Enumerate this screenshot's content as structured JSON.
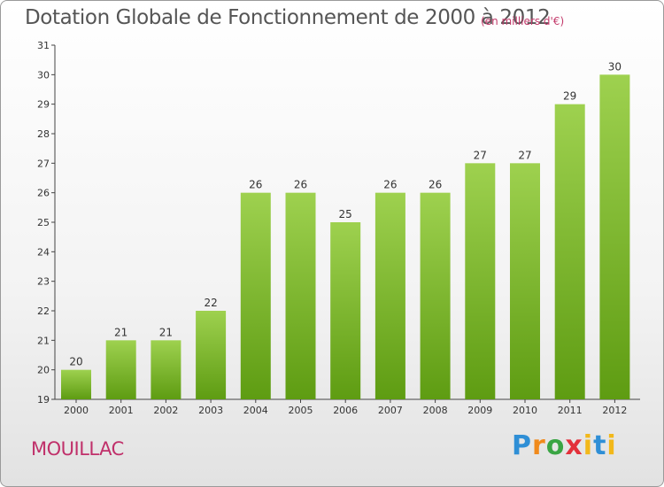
{
  "title": "Dotation Globale de Fonctionnement de 2000 à 2012",
  "subtitle": "(en milliers d'€)",
  "commune": "MOUILLAC",
  "logo": {
    "letters": [
      "P",
      "r",
      "o",
      "x",
      "i",
      "t",
      "i"
    ]
  },
  "colors": {
    "bar_top": "#9ed14f",
    "bar_bottom": "#5e9c12",
    "title": "#555555",
    "commune": "#c0306a"
  },
  "chart_data": {
    "type": "bar",
    "categories": [
      "2000",
      "2001",
      "2002",
      "2003",
      "2004",
      "2005",
      "2006",
      "2007",
      "2008",
      "2009",
      "2010",
      "2011",
      "2012"
    ],
    "values": [
      20,
      21,
      21,
      22,
      26,
      26,
      25,
      26,
      26,
      27,
      27,
      29,
      30
    ],
    "data_labels": [
      "20",
      "21",
      "21",
      "22",
      "26",
      "26",
      "25",
      "26",
      "26",
      "27",
      "27",
      "29",
      "30"
    ],
    "ylim": [
      19,
      31
    ],
    "yticks": [
      "19",
      "20",
      "21",
      "22",
      "23",
      "24",
      "25",
      "26",
      "27",
      "28",
      "29",
      "30",
      "31"
    ],
    "grid": false,
    "xlabel": "",
    "ylabel": ""
  }
}
